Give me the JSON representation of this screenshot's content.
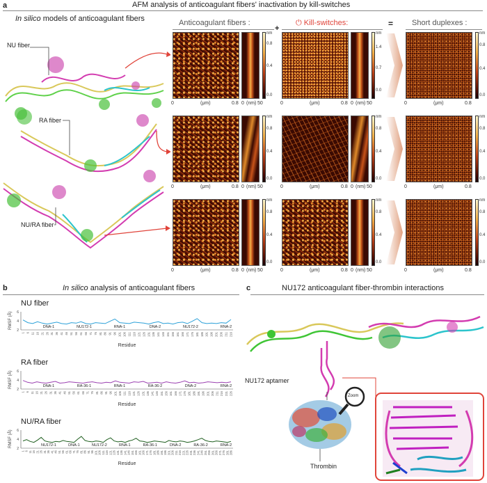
{
  "panel_a": {
    "letter": "a",
    "title": "AFM analysis of anticoagulant fibers' inactivation by kill-switches",
    "models_title_italic": "In silico",
    "models_title_rest": " models of anticoagulant  fibers",
    "fiber_labels": [
      "NU fiber",
      "RA fiber",
      "NU/RA fiber"
    ],
    "col_headers": {
      "fibers": "Anticoagulant  fibers :",
      "plus": "+",
      "killswitch": "Kill-switches:",
      "equals": "=",
      "short": "Short duplexes :"
    },
    "axis": {
      "start": "0",
      "unit_um": "(μm)",
      "end_um": "0.8",
      "zero_nm": "0",
      "unit_nm": "(nm)",
      "end_nm": "50"
    },
    "colorbars": {
      "row1_fibers": [
        "nm",
        "0.8",
        "0.4",
        "0.0"
      ],
      "row1_ks": [
        "nm",
        "1.4",
        "0.7",
        "0.0"
      ],
      "row1_short": [
        "nm",
        "0.8",
        "0.4",
        "0.0"
      ],
      "row2_fibers": [
        "nm",
        "0.8",
        "0.4",
        "0.0"
      ],
      "row2_ks": [
        "nm",
        "0.8",
        "0.4",
        "0.0"
      ],
      "row2_short": [
        "nm",
        "0.8",
        "0.4",
        "0.0"
      ],
      "row3_fibers": [
        "nm",
        "0.8",
        "0.4",
        "0.0"
      ],
      "row3_ks": [
        "nm",
        "0.8",
        "0.4",
        "0.0"
      ],
      "row3_short": [
        "nm",
        "0.8",
        "0.4",
        "0.0"
      ]
    }
  },
  "panel_b": {
    "letter": "b",
    "title_italic": "In silico",
    "title_rest": " analysis of anticoagulant fibers",
    "ylabel": "RMSF (Å)",
    "xlabel": "Residue",
    "plots": [
      {
        "name": "NU fiber",
        "color": "#2ba0d8",
        "segments": [
          "DNA-1",
          "NU172-1",
          "RNA-1",
          "DNA-2",
          "NU172-2",
          "RNA-2"
        ],
        "yticks": [
          "6",
          "4",
          "2"
        ],
        "ticks": [
          "1",
          "6",
          "11",
          "16",
          "21",
          "26",
          "31",
          "36",
          "41",
          "46",
          "51",
          "56",
          "61",
          "66",
          "71",
          "76",
          "81",
          "86",
          "91",
          "96",
          "101",
          "106",
          "111",
          "116",
          "121",
          "126",
          "131",
          "136",
          "141",
          "146",
          "151",
          "156",
          "161",
          "166",
          "171",
          "176",
          "181",
          "186",
          "191",
          "196",
          "201",
          "206",
          "211",
          "216"
        ]
      },
      {
        "name": "RA fiber",
        "color": "#9a3fb0",
        "segments": [
          "DNA-1",
          "RA-36-1",
          "RNA-1",
          "RA-36-2",
          "DNA-2",
          "RNA-2"
        ],
        "yticks": [
          "6",
          "4",
          "2"
        ],
        "ticks": [
          "1",
          "6",
          "11",
          "16",
          "21",
          "26",
          "31",
          "36",
          "41",
          "46",
          "51",
          "56",
          "61",
          "66",
          "71",
          "76",
          "81",
          "86",
          "91",
          "96",
          "101",
          "106",
          "111",
          "116",
          "121",
          "126",
          "131",
          "136",
          "141",
          "146",
          "151",
          "156",
          "161",
          "166",
          "171",
          "176",
          "181",
          "186",
          "191",
          "196",
          "201",
          "206",
          "211",
          "216",
          "221",
          "226"
        ]
      },
      {
        "name": "NU/RA fiber",
        "color": "#1e5e1e",
        "segments": [
          "NU172-1",
          "DNA-1",
          "NU172-2",
          "RNA-1",
          "RA-36-1",
          "DNA-2",
          "RA-36-2",
          "RNA-2"
        ],
        "yticks": [
          "6",
          "4",
          "2"
        ],
        "ticks": [
          "1",
          "6",
          "11",
          "16",
          "21",
          "26",
          "31",
          "36",
          "41",
          "46",
          "51",
          "56",
          "61",
          "66",
          "71",
          "76",
          "81",
          "86",
          "91",
          "96",
          "101",
          "106",
          "111",
          "116",
          "121",
          "126",
          "131",
          "136",
          "141",
          "146",
          "151",
          "156",
          "161",
          "166",
          "171",
          "176",
          "181",
          "186",
          "191",
          "196",
          "201",
          "206",
          "211",
          "216",
          "221",
          "226",
          "231",
          "236",
          "241",
          "246",
          "251",
          "256",
          "261",
          "266",
          "271",
          "276",
          "281",
          "286"
        ]
      }
    ]
  },
  "panel_c": {
    "letter": "c",
    "title": "NU172 anticoagulant fiber-thrombin interactions",
    "aptamer_label": "NU172 aptamer",
    "thrombin_label": "Thrombin",
    "zoom_label": "Zoom"
  },
  "colors": {
    "ks_red": "#e0443a",
    "arrow_red": "#e0443a",
    "fiber_magenta": "#cc33aa",
    "fiber_green": "#44cc33",
    "fiber_cyan": "#22b8c8"
  },
  "chart_data": [
    {
      "type": "line",
      "title": "NU fiber",
      "xlabel": "Residue",
      "ylabel": "RMSF (Å)",
      "ylim": [
        2,
        6
      ],
      "series": [
        {
          "name": "NU fiber",
          "values": [
            4.2,
            3.6,
            3.4,
            3.8,
            3.5,
            3.3,
            3.5,
            3.7,
            3.4,
            3.3,
            3.6,
            3.5,
            3.8,
            3.4,
            3.3,
            3.6,
            3.5,
            3.4,
            3.9,
            4.4,
            3.6,
            3.5,
            3.4,
            3.7,
            3.6,
            3.5,
            3.3,
            3.6,
            3.8,
            3.4,
            3.5,
            3.3,
            3.6,
            3.7,
            3.4,
            3.9,
            4.5,
            3.6,
            3.4,
            3.5,
            3.4,
            3.6,
            3.5,
            4.3
          ]
        }
      ]
    },
    {
      "type": "line",
      "title": "RA fiber",
      "xlabel": "Residue",
      "ylabel": "RMSF (Å)",
      "ylim": [
        2,
        6
      ],
      "series": [
        {
          "name": "RA fiber",
          "values": [
            3.9,
            3.5,
            3.3,
            3.6,
            3.4,
            3.3,
            3.5,
            3.7,
            3.3,
            3.4,
            3.6,
            3.5,
            3.4,
            3.3,
            3.5,
            3.6,
            3.4,
            3.3,
            3.5,
            3.4,
            3.8,
            3.5,
            3.4,
            3.3,
            3.6,
            3.5,
            3.7,
            3.3,
            3.4,
            3.5,
            3.3,
            3.6,
            3.4,
            3.3,
            3.5,
            3.8,
            3.4,
            3.5,
            3.3,
            3.4,
            3.6,
            3.5,
            3.4,
            3.5,
            3.4,
            3.6
          ]
        }
      ]
    },
    {
      "type": "line",
      "title": "NU/RA fiber",
      "xlabel": "Residue",
      "ylabel": "RMSF (Å)",
      "ylim": [
        2,
        6
      ],
      "series": [
        {
          "name": "NU/RA fiber",
          "values": [
            3.6,
            3.9,
            3.5,
            3.3,
            3.8,
            4.4,
            3.6,
            3.4,
            3.3,
            3.5,
            3.4,
            3.7,
            3.5,
            3.4,
            3.3,
            4.0,
            4.6,
            3.7,
            3.5,
            3.4,
            3.6,
            3.5,
            3.3,
            3.9,
            4.3,
            3.6,
            3.4,
            3.5,
            3.3,
            3.6,
            3.8,
            4.2,
            3.6,
            3.5,
            3.3,
            3.4,
            3.6,
            3.5,
            3.4,
            3.3,
            3.7,
            3.5,
            3.4,
            3.6,
            3.5,
            3.3,
            3.4,
            3.6,
            3.9,
            4.2,
            3.7,
            3.5,
            3.4,
            3.6,
            3.5,
            3.4,
            3.3,
            3.5
          ]
        }
      ]
    }
  ]
}
